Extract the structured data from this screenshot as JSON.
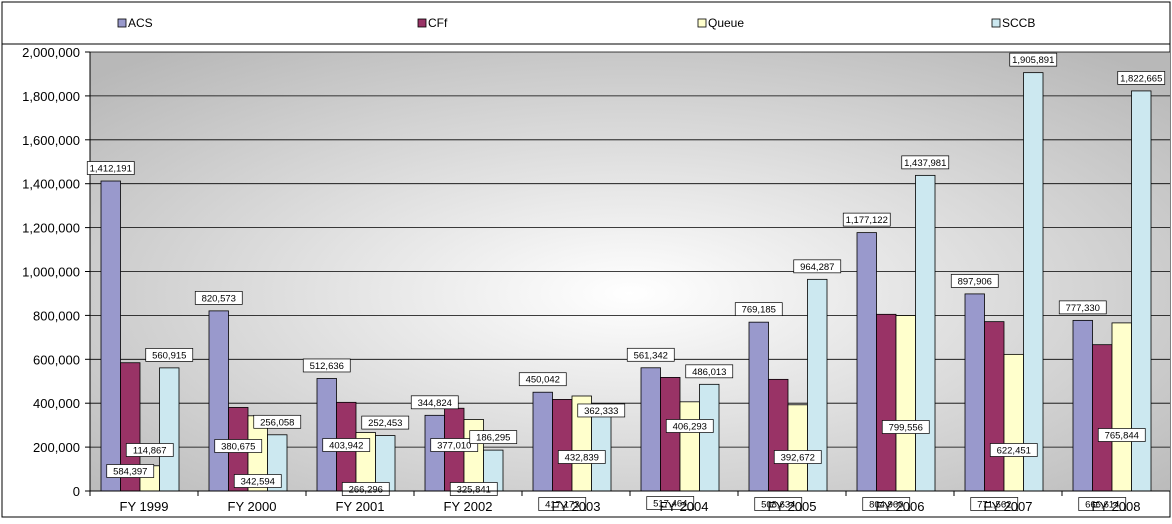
{
  "chart_data": {
    "type": "bar",
    "categories": [
      "FY 1999",
      "FY 2000",
      "FY 2001",
      "FY 2002",
      "FY 2003",
      "FY 2004",
      "FY 2005",
      "FY 2006",
      "FY 2007",
      "FY 2008"
    ],
    "series": [
      {
        "name": "ACS",
        "color": "#9999cc",
        "values": [
          1412191,
          820573,
          512636,
          344824,
          450042,
          561342,
          769185,
          1177122,
          897906,
          777330
        ]
      },
      {
        "name": "CFf",
        "color": "#993366",
        "values": [
          584397,
          380675,
          403942,
          377010,
          417173,
          517464,
          508634,
          804960,
          771562,
          666614
        ]
      },
      {
        "name": "Queue",
        "color": "#ffffcc",
        "values": [
          114867,
          342594,
          266296,
          325841,
          432839,
          406293,
          392672,
          799556,
          622451,
          765844
        ]
      },
      {
        "name": "SCCB",
        "color": "#cce8f0",
        "values": [
          560915,
          256058,
          252453,
          186295,
          362333,
          486013,
          964287,
          1437981,
          1905891,
          1822665
        ]
      }
    ],
    "data_labels": [
      [
        "1,412,191",
        "584,397",
        "114,867",
        "560,915"
      ],
      [
        "820,573",
        "380,675",
        "342,594",
        "256,058"
      ],
      [
        "512,636",
        "403,942",
        "266,296",
        "252,453"
      ],
      [
        "344,824",
        "377,010",
        "325,841",
        "186,295"
      ],
      [
        "450,042",
        "417,173",
        "432,839",
        "362,333"
      ],
      [
        "561,342",
        "517,464",
        "406,293",
        "486,013"
      ],
      [
        "769,185",
        "508,634",
        "392,672",
        "964,287"
      ],
      [
        "1,177,122",
        "804,960",
        "799,556",
        "1,437,981"
      ],
      [
        "897,906",
        "771,562",
        "622,451",
        "1,905,891"
      ],
      [
        "777,330",
        "666,614",
        "765,844",
        "1,822,665"
      ]
    ],
    "y_ticks": [
      0,
      200000,
      400000,
      600000,
      800000,
      1000000,
      1200000,
      1400000,
      1600000,
      1800000,
      2000000
    ],
    "y_tick_labels": [
      "0",
      "200,000",
      "400,000",
      "600,000",
      "800,000",
      "1,000,000",
      "1,200,000",
      "1,400,000",
      "1,600,000",
      "1,800,000",
      "2,000,000"
    ],
    "ylim": [
      0,
      2000000
    ],
    "legend": "top",
    "grid": true,
    "title": "",
    "xlabel": "",
    "ylabel": ""
  }
}
